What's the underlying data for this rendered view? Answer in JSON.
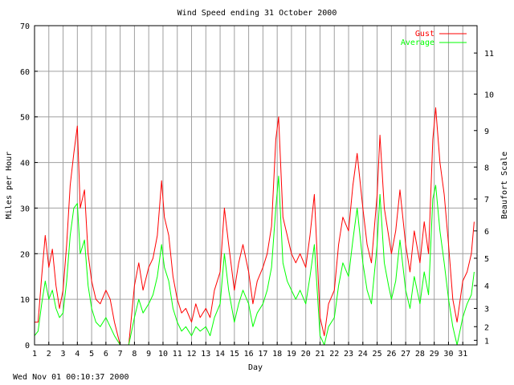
{
  "footer": {
    "timestamp": "Wed Nov 01 00:10:37 2000"
  },
  "chart_data": {
    "type": "line",
    "title": "Wind Speed ending 31 October 2000",
    "xlabel": "Day",
    "ylabel": "Miles per Hour",
    "y2label": "Beaufort Scale",
    "xlim": [
      1,
      32
    ],
    "ylim": [
      0,
      70
    ],
    "x_ticks": [
      "1",
      "2",
      "3",
      "4",
      "5",
      "6",
      "7",
      "8",
      "9",
      "10",
      "11",
      "12",
      "13",
      "14",
      "15",
      "16",
      "17",
      "18",
      "19",
      "20",
      "21",
      "22",
      "23",
      "24",
      "25",
      "26",
      "27",
      "28",
      "29",
      "30",
      "31"
    ],
    "y_ticks": [
      0,
      10,
      20,
      30,
      40,
      50,
      60,
      70
    ],
    "beaufort_ticks": [
      {
        "label": "1",
        "mph": 1.0
      },
      {
        "label": "2",
        "mph": 4.0
      },
      {
        "label": "3",
        "mph": 8.0
      },
      {
        "label": "4",
        "mph": 13.0
      },
      {
        "label": "5",
        "mph": 19.0
      },
      {
        "label": "6",
        "mph": 25.0
      },
      {
        "label": "7",
        "mph": 32.0
      },
      {
        "label": "8",
        "mph": 39.0
      },
      {
        "label": "9",
        "mph": 47.0
      },
      {
        "label": "10",
        "mph": 55.0
      },
      {
        "label": "11",
        "mph": 64.0
      }
    ],
    "grid": true,
    "legend_position": "top-right",
    "series": [
      {
        "name": "Gust",
        "color": "#ff0000",
        "points": [
          [
            1.0,
            5
          ],
          [
            1.25,
            5
          ],
          [
            1.5,
            15
          ],
          [
            1.75,
            24
          ],
          [
            2.0,
            17
          ],
          [
            2.25,
            21
          ],
          [
            2.5,
            13
          ],
          [
            2.75,
            8
          ],
          [
            3.0,
            12
          ],
          [
            3.25,
            22
          ],
          [
            3.5,
            35
          ],
          [
            3.75,
            42
          ],
          [
            4.0,
            48
          ],
          [
            4.2,
            30
          ],
          [
            4.5,
            34
          ],
          [
            4.75,
            20
          ],
          [
            5.0,
            14
          ],
          [
            5.3,
            10
          ],
          [
            5.6,
            9
          ],
          [
            6.0,
            12
          ],
          [
            6.3,
            10
          ],
          [
            6.6,
            5
          ],
          [
            7.0,
            0
          ],
          [
            7.3,
            0
          ],
          [
            7.6,
            0
          ],
          [
            8.0,
            13
          ],
          [
            8.3,
            18
          ],
          [
            8.6,
            12
          ],
          [
            9.0,
            17
          ],
          [
            9.3,
            19
          ],
          [
            9.6,
            24
          ],
          [
            9.9,
            36
          ],
          [
            10.1,
            28
          ],
          [
            10.4,
            24
          ],
          [
            10.7,
            15
          ],
          [
            11.0,
            10
          ],
          [
            11.3,
            7
          ],
          [
            11.6,
            8
          ],
          [
            12.0,
            5
          ],
          [
            12.3,
            9
          ],
          [
            12.6,
            6
          ],
          [
            13.0,
            8
          ],
          [
            13.3,
            6
          ],
          [
            13.6,
            12
          ],
          [
            14.0,
            16
          ],
          [
            14.3,
            30
          ],
          [
            14.6,
            22
          ],
          [
            15.0,
            12
          ],
          [
            15.3,
            18
          ],
          [
            15.6,
            22
          ],
          [
            16.0,
            16
          ],
          [
            16.3,
            9
          ],
          [
            16.6,
            14
          ],
          [
            17.0,
            17
          ],
          [
            17.3,
            20
          ],
          [
            17.6,
            26
          ],
          [
            17.9,
            45
          ],
          [
            18.1,
            50
          ],
          [
            18.4,
            28
          ],
          [
            18.7,
            24
          ],
          [
            19.0,
            20
          ],
          [
            19.3,
            18
          ],
          [
            19.6,
            20
          ],
          [
            20.0,
            17
          ],
          [
            20.3,
            24
          ],
          [
            20.6,
            33
          ],
          [
            21.0,
            6
          ],
          [
            21.3,
            2
          ],
          [
            21.6,
            9
          ],
          [
            22.0,
            12
          ],
          [
            22.3,
            22
          ],
          [
            22.6,
            28
          ],
          [
            23.0,
            25
          ],
          [
            23.3,
            35
          ],
          [
            23.6,
            42
          ],
          [
            24.0,
            30
          ],
          [
            24.3,
            22
          ],
          [
            24.6,
            18
          ],
          [
            25.0,
            33
          ],
          [
            25.2,
            46
          ],
          [
            25.5,
            30
          ],
          [
            25.8,
            24
          ],
          [
            26.0,
            20
          ],
          [
            26.3,
            25
          ],
          [
            26.6,
            34
          ],
          [
            27.0,
            22
          ],
          [
            27.3,
            16
          ],
          [
            27.6,
            25
          ],
          [
            28.0,
            18
          ],
          [
            28.3,
            27
          ],
          [
            28.6,
            20
          ],
          [
            28.9,
            45
          ],
          [
            29.1,
            52
          ],
          [
            29.4,
            40
          ],
          [
            29.7,
            33
          ],
          [
            30.0,
            22
          ],
          [
            30.3,
            10
          ],
          [
            30.6,
            5
          ],
          [
            31.0,
            14
          ],
          [
            31.3,
            16
          ],
          [
            31.6,
            20
          ],
          [
            31.8,
            27
          ]
        ]
      },
      {
        "name": "Average",
        "color": "#00ff00",
        "points": [
          [
            1.0,
            2
          ],
          [
            1.25,
            3
          ],
          [
            1.5,
            9
          ],
          [
            1.75,
            14
          ],
          [
            2.0,
            10
          ],
          [
            2.25,
            12
          ],
          [
            2.5,
            8
          ],
          [
            2.75,
            6
          ],
          [
            3.0,
            7
          ],
          [
            3.25,
            14
          ],
          [
            3.5,
            24
          ],
          [
            3.75,
            30
          ],
          [
            4.0,
            31
          ],
          [
            4.2,
            20
          ],
          [
            4.5,
            23
          ],
          [
            4.75,
            13
          ],
          [
            5.0,
            8
          ],
          [
            5.3,
            5
          ],
          [
            5.6,
            4
          ],
          [
            6.0,
            6
          ],
          [
            6.3,
            4
          ],
          [
            6.6,
            2
          ],
          [
            7.0,
            0
          ],
          [
            7.3,
            0
          ],
          [
            7.6,
            0
          ],
          [
            8.0,
            6
          ],
          [
            8.3,
            10
          ],
          [
            8.6,
            7
          ],
          [
            9.0,
            9
          ],
          [
            9.3,
            11
          ],
          [
            9.6,
            15
          ],
          [
            9.9,
            22
          ],
          [
            10.1,
            17
          ],
          [
            10.4,
            14
          ],
          [
            10.7,
            8
          ],
          [
            11.0,
            5
          ],
          [
            11.3,
            3
          ],
          [
            11.6,
            4
          ],
          [
            12.0,
            2
          ],
          [
            12.3,
            4
          ],
          [
            12.6,
            3
          ],
          [
            13.0,
            4
          ],
          [
            13.3,
            2
          ],
          [
            13.6,
            6
          ],
          [
            14.0,
            9
          ],
          [
            14.3,
            20
          ],
          [
            14.6,
            12
          ],
          [
            15.0,
            5
          ],
          [
            15.3,
            9
          ],
          [
            15.6,
            12
          ],
          [
            16.0,
            9
          ],
          [
            16.3,
            4
          ],
          [
            16.6,
            7
          ],
          [
            17.0,
            9
          ],
          [
            17.3,
            12
          ],
          [
            17.6,
            17
          ],
          [
            17.9,
            30
          ],
          [
            18.1,
            37
          ],
          [
            18.4,
            18
          ],
          [
            18.7,
            14
          ],
          [
            19.0,
            12
          ],
          [
            19.3,
            10
          ],
          [
            19.6,
            12
          ],
          [
            20.0,
            9
          ],
          [
            20.3,
            15
          ],
          [
            20.6,
            22
          ],
          [
            21.0,
            2
          ],
          [
            21.3,
            0
          ],
          [
            21.6,
            4
          ],
          [
            22.0,
            6
          ],
          [
            22.3,
            13
          ],
          [
            22.6,
            18
          ],
          [
            23.0,
            15
          ],
          [
            23.3,
            23
          ],
          [
            23.6,
            30
          ],
          [
            24.0,
            18
          ],
          [
            24.3,
            12
          ],
          [
            24.6,
            9
          ],
          [
            25.0,
            22
          ],
          [
            25.2,
            33
          ],
          [
            25.5,
            18
          ],
          [
            25.8,
            13
          ],
          [
            26.0,
            10
          ],
          [
            26.3,
            14
          ],
          [
            26.6,
            23
          ],
          [
            27.0,
            12
          ],
          [
            27.3,
            8
          ],
          [
            27.6,
            15
          ],
          [
            28.0,
            9
          ],
          [
            28.3,
            16
          ],
          [
            28.6,
            11
          ],
          [
            28.9,
            32
          ],
          [
            29.1,
            35
          ],
          [
            29.4,
            25
          ],
          [
            29.7,
            18
          ],
          [
            30.0,
            10
          ],
          [
            30.3,
            4
          ],
          [
            30.6,
            0
          ],
          [
            31.0,
            6
          ],
          [
            31.3,
            9
          ],
          [
            31.6,
            11
          ],
          [
            31.8,
            16
          ]
        ]
      }
    ]
  }
}
